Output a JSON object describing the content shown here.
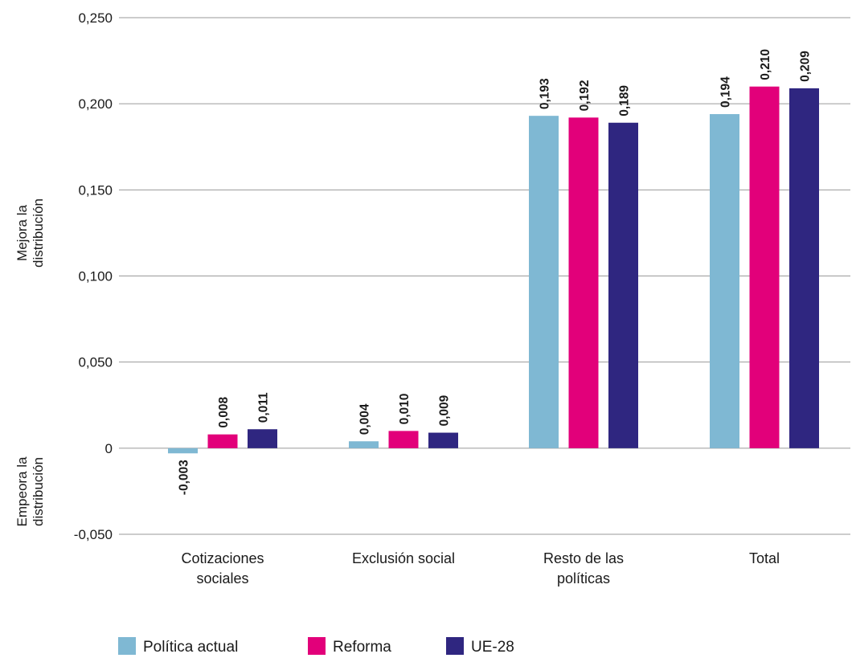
{
  "chart_data": {
    "type": "bar",
    "categories": [
      [
        "Cotizaciones",
        "sociales"
      ],
      [
        "Exclusión social"
      ],
      [
        "Resto de las",
        "políticas"
      ],
      [
        "Total"
      ]
    ],
    "series": [
      {
        "name": "Política actual",
        "color": "#7fb8d3",
        "values": [
          -0.003,
          0.004,
          0.193,
          0.194
        ],
        "labels": [
          "-0,003",
          "0,004",
          "0,193",
          "0,194"
        ]
      },
      {
        "name": "Reforma",
        "color": "#e2007a",
        "values": [
          0.008,
          0.01,
          0.192,
          0.21
        ],
        "labels": [
          "0,008",
          "0,010",
          "0,192",
          "0,210"
        ]
      },
      {
        "name": "UE-28",
        "color": "#2f2680",
        "values": [
          0.011,
          0.009,
          0.189,
          0.209
        ],
        "labels": [
          "0,011",
          "0,009",
          "0,189",
          "0,209"
        ]
      }
    ],
    "ylim": [
      -0.05,
      0.25
    ],
    "yticks": [
      {
        "value": 0.25,
        "label": "0,250"
      },
      {
        "value": 0.2,
        "label": "0,200"
      },
      {
        "value": 0.15,
        "label": "0,150"
      },
      {
        "value": 0.1,
        "label": "0,100"
      },
      {
        "value": 0.05,
        "label": "0,050"
      },
      {
        "value": 0,
        "label": "0"
      },
      {
        "value": -0.05,
        "label": "-0,050"
      }
    ],
    "side_labels": {
      "positive": [
        "Mejora la",
        "distribución"
      ],
      "negative": [
        "Empeora la",
        "distribución"
      ]
    },
    "grid": true,
    "legend_position": "bottom-left"
  }
}
